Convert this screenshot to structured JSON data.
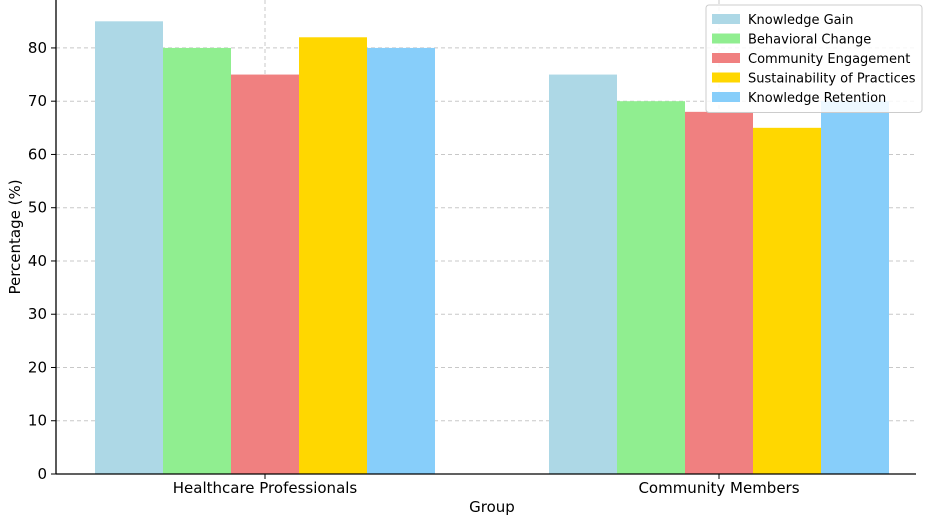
{
  "chart_data": {
    "type": "bar",
    "title": "",
    "xlabel": "Group",
    "ylabel": "Percentage (%)",
    "categories": [
      "Healthcare Professionals",
      "Community Members"
    ],
    "series": [
      {
        "name": "Knowledge Gain",
        "values": [
          85,
          75
        ],
        "color": "#ADD8E6"
      },
      {
        "name": "Behavioral Change",
        "values": [
          80,
          70
        ],
        "color": "#90EE90"
      },
      {
        "name": "Community Engagement",
        "values": [
          75,
          68
        ],
        "color": "#F08080"
      },
      {
        "name": "Sustainability of Practices",
        "values": [
          82,
          65
        ],
        "color": "#FFD700"
      },
      {
        "name": "Knowledge Retention",
        "values": [
          80,
          70
        ],
        "color": "#87CEFA"
      }
    ],
    "ylim": [
      0,
      89
    ],
    "yticks": [
      0,
      10,
      20,
      30,
      40,
      50,
      60,
      70,
      80
    ],
    "grid": true,
    "legend_position": "top-right"
  }
}
